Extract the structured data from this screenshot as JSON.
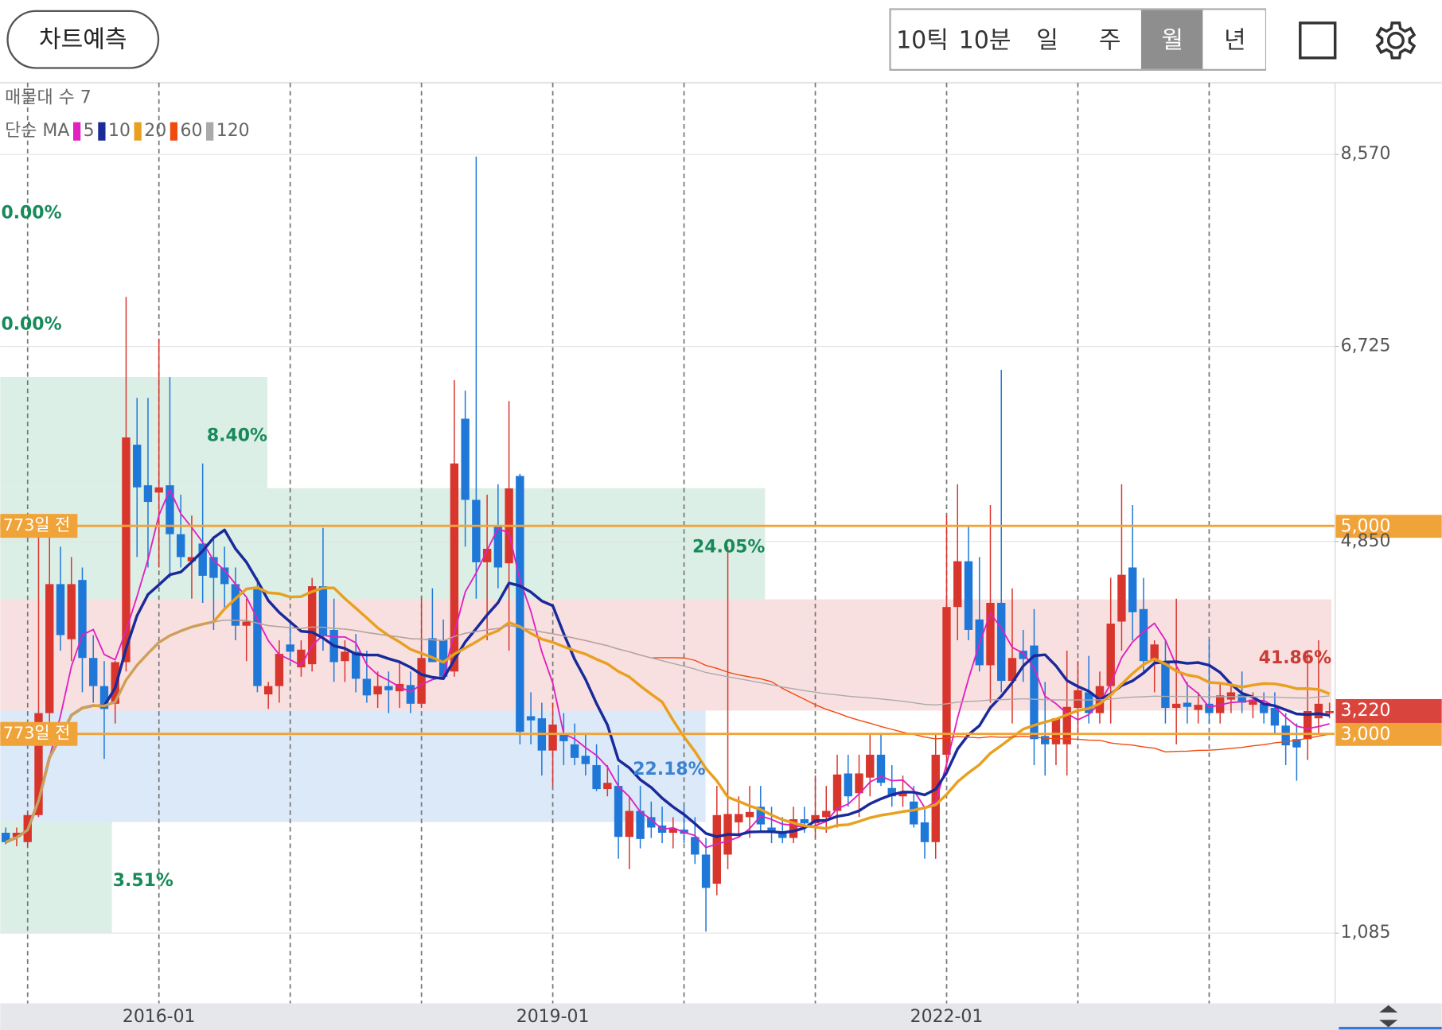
{
  "toolbar": {
    "predict_button": "차트예측",
    "tabs": [
      "10틱",
      "10분",
      "일",
      "주",
      "월",
      "년"
    ],
    "selected_tab": "월"
  },
  "chart_data": {
    "type": "candlestick",
    "categories": [
      null,
      null,
      null,
      null,
      null,
      null,
      null,
      null,
      null,
      null,
      null,
      null,
      null,
      null,
      "2016-01",
      null,
      null,
      null,
      null,
      null,
      null,
      null,
      null,
      null,
      null,
      null,
      null,
      null,
      null,
      null,
      null,
      null,
      null,
      null,
      null,
      null,
      null,
      null,
      null,
      null,
      null,
      null,
      null,
      null,
      null,
      null,
      null,
      null,
      null,
      null,
      "2019-01",
      null,
      null,
      null,
      null,
      null,
      null,
      null,
      null,
      null,
      null,
      null,
      null,
      null,
      null,
      null,
      null,
      null,
      null,
      null,
      null,
      null,
      null,
      null,
      null,
      null,
      null,
      null,
      null,
      null,
      null,
      null,
      null,
      null,
      null,
      null,
      "2022-01",
      null,
      null,
      null,
      null,
      null,
      null,
      null,
      null,
      null,
      null,
      null,
      null,
      null,
      null,
      null,
      null,
      null,
      null,
      null,
      null,
      null,
      null,
      null,
      null,
      null,
      null,
      null,
      null,
      null,
      null,
      null,
      null,
      null,
      null,
      null
    ],
    "open": [
      2050,
      2010,
      1960,
      2220,
      3200,
      4440,
      3910,
      4480,
      3730,
      3460,
      3290,
      3690,
      5780,
      5390,
      5320,
      5390,
      4920,
      4660,
      4830,
      4700,
      4600,
      4440,
      4040,
      4390,
      3380,
      3460,
      3860,
      3640,
      3670,
      4420,
      4000,
      3700,
      3790,
      3530,
      3380,
      3460,
      3410,
      3470,
      3290,
      3920,
      3900,
      3600,
      6030,
      5250,
      4650,
      5000,
      4640,
      5480,
      3170,
      3150,
      2840,
      3000,
      2900,
      2790,
      2700,
      2470,
      2500,
      2010,
      2260,
      2200,
      2120,
      2050,
      2080,
      2010,
      1840,
      1560,
      1840,
      2150,
      2200,
      2300,
      2100,
      2060,
      2000,
      2180,
      2140,
      2200,
      2260,
      2620,
      2430,
      2580,
      2800,
      2480,
      2400,
      2350,
      2150,
      1960,
      2800,
      4220,
      4660,
      4100,
      3660,
      4260,
      3510,
      3800,
      3850,
      2980,
      2900,
      2900,
      3250,
      3400,
      3200,
      3460,
      4080,
      4600,
      4200,
      3700,
      3700,
      3250,
      3300,
      3230,
      3290,
      3200,
      3330,
      3380,
      3280,
      3290,
      3250,
      3080,
      2950,
      2950,
      3150,
      3200
    ],
    "high": [
      2100,
      2100,
      2250,
      4900,
      5080,
      4800,
      4700,
      4600,
      3950,
      3700,
      3700,
      7200,
      6230,
      6230,
      6800,
      6430,
      5300,
      5100,
      5600,
      4900,
      4800,
      4600,
      4300,
      4500,
      3500,
      3900,
      4100,
      3900,
      4500,
      4980,
      4300,
      3900,
      3960,
      3800,
      3600,
      3600,
      3700,
      3600,
      4300,
      4400,
      4100,
      6400,
      6300,
      8550,
      5300,
      5400,
      6200,
      5500,
      3400,
      3300,
      3300,
      3200,
      3100,
      3000,
      2900,
      2700,
      2700,
      2400,
      2500,
      2350,
      2300,
      2200,
      2300,
      2200,
      2000,
      2500,
      4800,
      2400,
      2500,
      2500,
      2300,
      2200,
      2300,
      2300,
      2600,
      2500,
      2800,
      2800,
      2800,
      3000,
      3000,
      2700,
      2600,
      2500,
      2300,
      3000,
      5100,
      5400,
      5000,
      4700,
      5200,
      6500,
      4400,
      4000,
      4200,
      3500,
      3100,
      3800,
      3700,
      3750,
      3600,
      4500,
      5400,
      5200,
      4500,
      3900,
      3900,
      4300,
      3500,
      3400,
      3900,
      3500,
      3500,
      3600,
      3400,
      3400,
      3400,
      3200,
      3100,
      3800,
      3900,
      3300
    ],
    "low": [
      1940,
      1920,
      1920,
      2200,
      3100,
      3800,
      3700,
      3400,
      3300,
      2760,
      3100,
      3600,
      4700,
      4600,
      4600,
      4500,
      4600,
      4300,
      4260,
      4000,
      4200,
      3900,
      3700,
      3400,
      3240,
      3300,
      3700,
      3550,
      3600,
      3800,
      3500,
      3500,
      3400,
      3300,
      3250,
      3200,
      3250,
      3200,
      3250,
      3700,
      3550,
      3550,
      4800,
      4300,
      3900,
      4400,
      3800,
      2900,
      2900,
      2600,
      2500,
      2700,
      2700,
      2600,
      2450,
      2400,
      1800,
      1700,
      1900,
      2000,
      1950,
      1900,
      1950,
      1750,
      1100,
      1450,
      1700,
      2000,
      2000,
      2050,
      1950,
      1950,
      1950,
      2050,
      2000,
      2050,
      2100,
      2300,
      2200,
      2400,
      2500,
      2300,
      2300,
      2100,
      1800,
      1800,
      2600,
      3900,
      3900,
      3600,
      3300,
      3400,
      3100,
      3500,
      2700,
      2600,
      2700,
      2600,
      3000,
      3100,
      3100,
      3100,
      3800,
      3900,
      3600,
      3400,
      3100,
      2900,
      3100,
      3100,
      3100,
      3100,
      3200,
      3200,
      3150,
      3100,
      3000,
      2700,
      2550,
      2750,
      3000,
      3150
    ],
    "close": [
      1960,
      2050,
      2220,
      3200,
      4440,
      3950,
      4440,
      3730,
      3460,
      3240,
      3690,
      5850,
      5370,
      5230,
      5370,
      4920,
      4700,
      4700,
      4520,
      4500,
      4440,
      4040,
      4080,
      3460,
      3460,
      3770,
      3790,
      3810,
      4420,
      3950,
      3690,
      3790,
      3530,
      3370,
      3460,
      3420,
      3480,
      3290,
      3730,
      3690,
      3550,
      5600,
      5250,
      4650,
      4780,
      4600,
      5360,
      3020,
      3130,
      2840,
      3090,
      2930,
      2770,
      2710,
      2470,
      2530,
      2010,
      2260,
      1990,
      2100,
      2050,
      2090,
      2040,
      1840,
      1520,
      2220,
      2230,
      2230,
      2250,
      2130,
      2050,
      2000,
      2180,
      2140,
      2220,
      2260,
      2610,
      2400,
      2620,
      2800,
      2530,
      2400,
      2430,
      2130,
      1960,
      2800,
      4220,
      4660,
      4000,
      3660,
      4260,
      3510,
      3730,
      3720,
      2950,
      2900,
      3150,
      3260,
      3420,
      3200,
      3460,
      4060,
      4530,
      4170,
      3700,
      3860,
      3250,
      3290,
      3260,
      3280,
      3200,
      3370,
      3400,
      3300,
      3330,
      3200,
      3080,
      2890,
      2870,
      3220,
      3290,
      3220
    ],
    "up_color": "#d8362d",
    "down_color": "#1f78d8",
    "ylim": [
      410,
      9260
    ],
    "yticks": [
      {
        "value": 1085,
        "label": "1,085"
      },
      {
        "value": 4850,
        "label": "4,850"
      },
      {
        "value": 6725,
        "label": "6,725"
      },
      {
        "value": 8570,
        "label": "8,570"
      }
    ],
    "grid": true,
    "xgrid": [
      2,
      14,
      26,
      38,
      50,
      62,
      74,
      86,
      98,
      110
    ],
    "volume_profile": {
      "title": "매물대 수 7",
      "edges": [
        1085,
        2154,
        3224,
        4293,
        5362,
        6431,
        7501,
        8570
      ],
      "values": [
        3.51,
        22.18,
        41.86,
        24.05,
        8.4,
        0.0,
        0.0
      ],
      "value_labels": [
        "3.51%",
        "22.18%",
        "41.86%",
        "24.05%",
        "8.40%",
        "0.00%",
        "0.00%"
      ],
      "colors": [
        "#dcefe6",
        "#dce9f8",
        "#f9e0e0",
        "#dcefe6",
        "#dcefe6",
        "#dcefe6",
        "#dcefe6"
      ],
      "label_colors": [
        "#188a5a",
        "#3b82d0",
        "#c93c36",
        "#188a5a",
        "#188a5a",
        "#188a5a",
        "#188a5a"
      ]
    },
    "moving_averages": {
      "title": "단순 MA",
      "periods": [
        5,
        10,
        20,
        60,
        120
      ],
      "colors": [
        "#e020c0",
        "#1a2a9a",
        "#e8a020",
        "#f04a10",
        "#aaaaaa"
      ],
      "widths": [
        1.6,
        3,
        3,
        1.2,
        1.2
      ]
    },
    "price_lines": [
      {
        "value": 5000,
        "label": "5,000",
        "note": "773일 전",
        "color": "#f0a338"
      },
      {
        "value": 3000,
        "label": "3,000",
        "note": "773일 전",
        "color": "#f0a338"
      }
    ],
    "current_price": {
      "value": 3220,
      "label": "3,220",
      "color": "#d9453c"
    }
  }
}
